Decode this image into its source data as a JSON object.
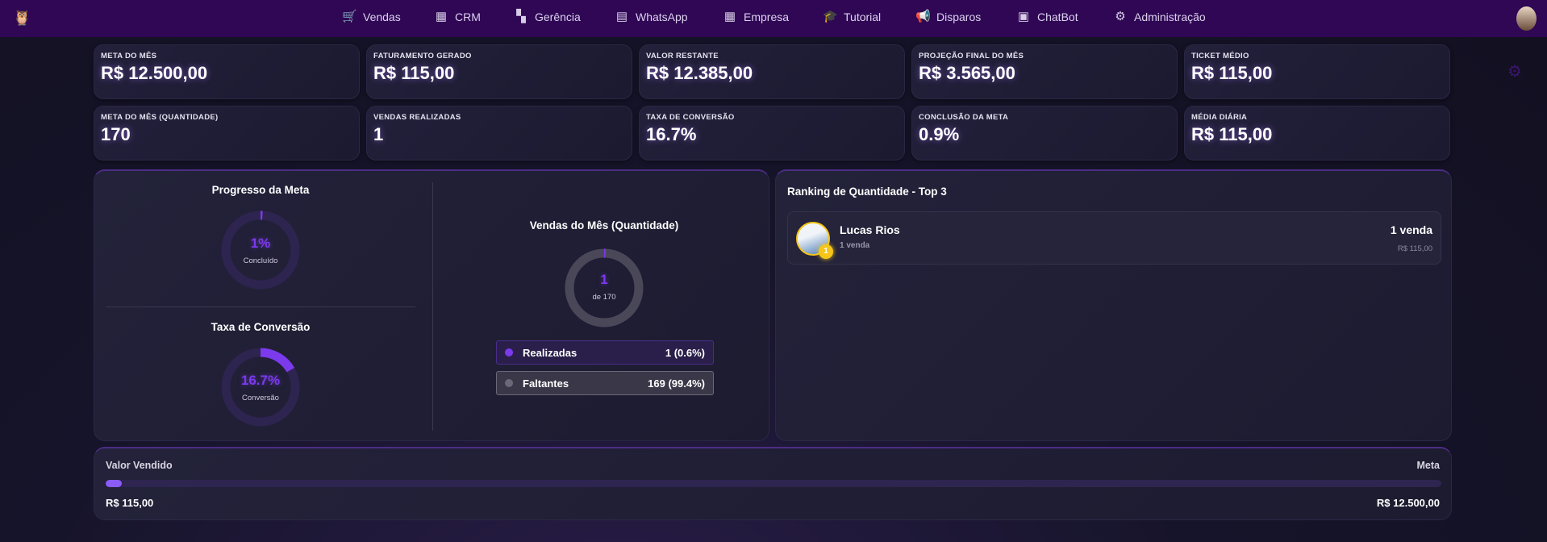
{
  "nav": {
    "items": [
      {
        "label": "Vendas",
        "icon": "cart-icon",
        "glyph": "🛒"
      },
      {
        "label": "CRM",
        "icon": "building-icon",
        "glyph": "▦"
      },
      {
        "label": "Gerência",
        "icon": "grid-icon",
        "glyph": "▚"
      },
      {
        "label": "WhatsApp",
        "icon": "chat-icon",
        "glyph": "▤"
      },
      {
        "label": "Empresa",
        "icon": "building-icon",
        "glyph": "▦"
      },
      {
        "label": "Tutorial",
        "icon": "graduation-cap-icon",
        "glyph": "🎓"
      },
      {
        "label": "Disparos",
        "icon": "megaphone-icon",
        "glyph": "📢"
      },
      {
        "label": "ChatBot",
        "icon": "forum-icon",
        "glyph": "▣"
      },
      {
        "label": "Administração",
        "icon": "gear-icon",
        "glyph": "⚙"
      }
    ]
  },
  "cards": [
    {
      "label": "META DO MÊS",
      "value": "R$ 12.500,00"
    },
    {
      "label": "FATURAMENTO GERADO",
      "value": "R$ 115,00"
    },
    {
      "label": "VALOR RESTANTE",
      "value": "R$ 12.385,00"
    },
    {
      "label": "PROJEÇÃO FINAL DO MÊS",
      "value": "R$ 3.565,00"
    },
    {
      "label": "TICKET MÉDIO",
      "value": "R$ 115,00"
    },
    {
      "label": "META DO MÊS (QUANTIDADE)",
      "value": "170"
    },
    {
      "label": "VENDAS REALIZADAS",
      "value": "1"
    },
    {
      "label": "TAXA DE CONVERSÃO",
      "value": "16.7%"
    },
    {
      "label": "CONCLUSÃO DA META",
      "value": "0.9%"
    },
    {
      "label": "MÉDIA DIÁRIA",
      "value": "R$ 115,00"
    }
  ],
  "progress": {
    "title": "Progresso da Meta",
    "value": "1%",
    "caption": "Concluído",
    "fraction": 0.009
  },
  "conversion": {
    "title": "Taxa de Conversão",
    "value": "16.7%",
    "caption": "Conversão",
    "fraction": 0.167
  },
  "sales_qty": {
    "title": "Vendas do Mês (Quantidade)",
    "value": "1",
    "caption": "de 170",
    "fraction": 0.006,
    "legend": [
      {
        "label": "Realizadas",
        "value": "1 (0.6%)",
        "color": "#7c3aed"
      },
      {
        "label": "Faltantes",
        "value": "169 (99.4%)",
        "color": "#55535f"
      }
    ]
  },
  "ranking": {
    "title": "Ranking de Quantidade - Top 3",
    "items": [
      {
        "rank": "1",
        "name": "Lucas Rios",
        "sub": "1 venda",
        "count": "1 venda",
        "amount": "R$ 115,00"
      }
    ]
  },
  "sold": {
    "label": "Valor Vendido",
    "goal_label": "Meta",
    "value": "R$ 115,00",
    "goal": "R$ 12.500,00",
    "fraction": 0.009
  },
  "colors": {
    "accent": "#7c3aed",
    "nav": "#2f0755",
    "gold": "#f5c518"
  }
}
